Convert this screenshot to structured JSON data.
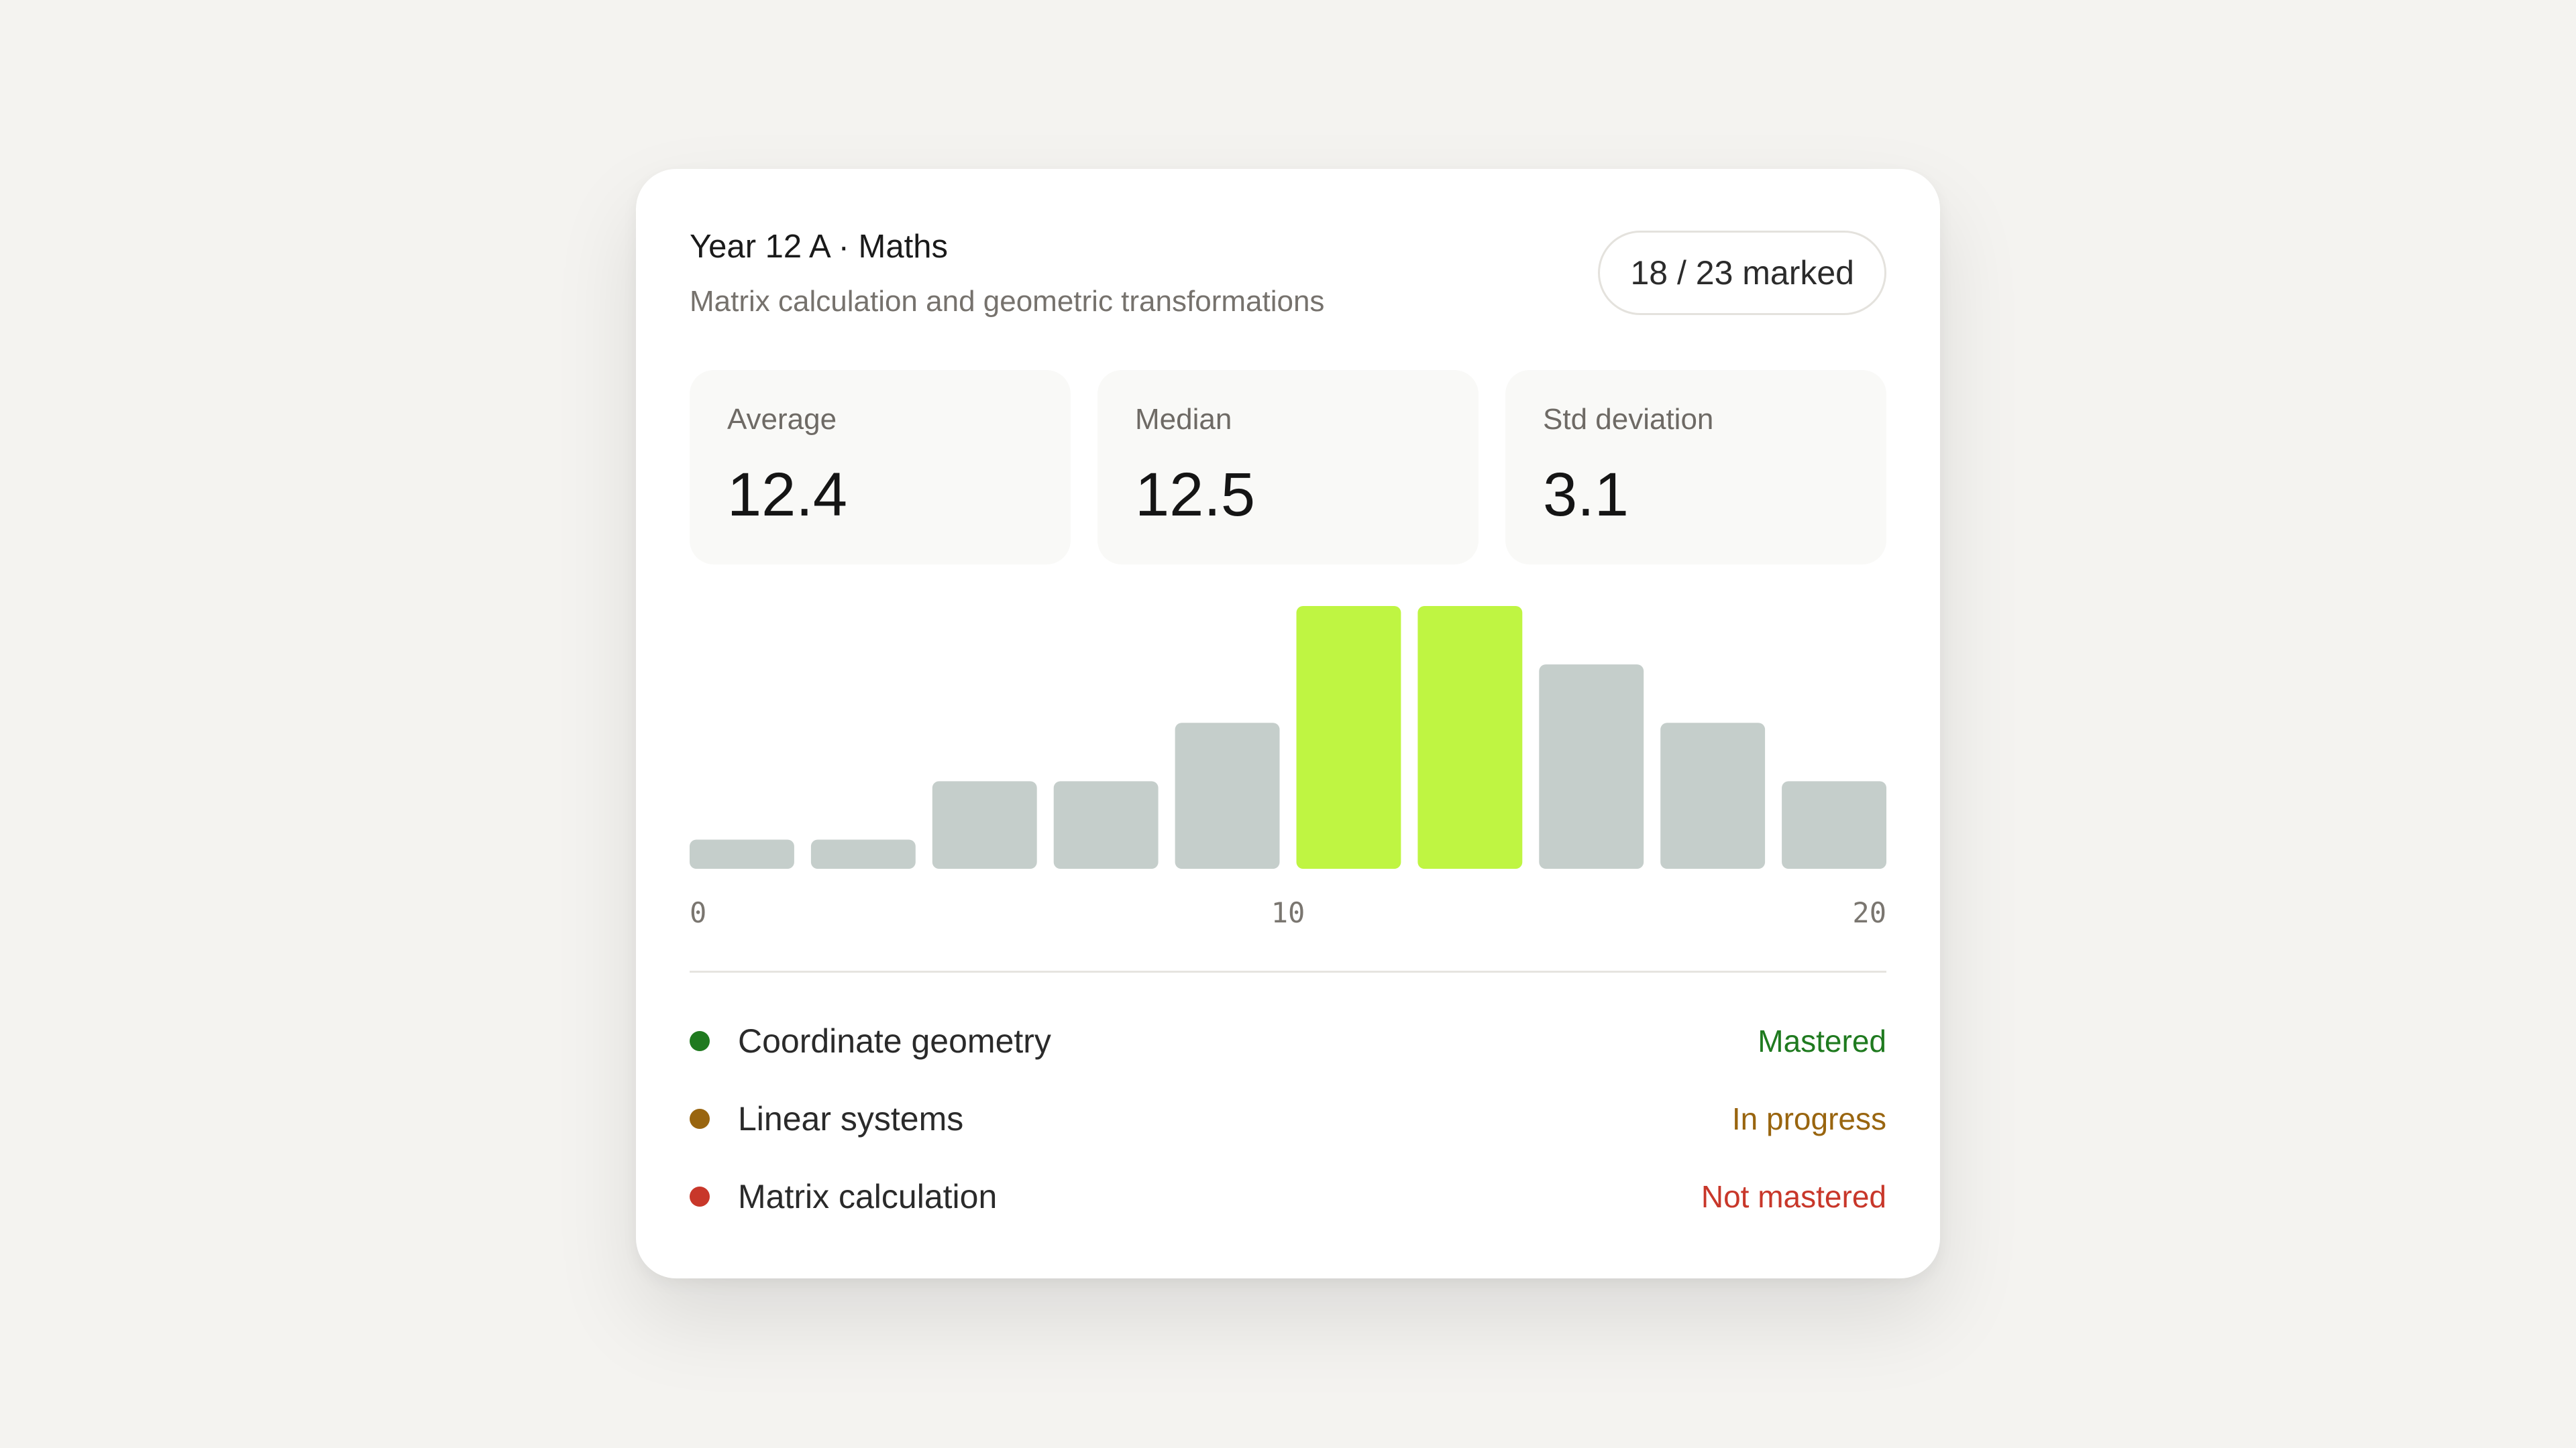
{
  "header": {
    "title": "Year 12 A · Maths",
    "subtitle": "Matrix calculation and geometric transformations",
    "badge": "18 / 23 marked"
  },
  "stats": [
    {
      "label": "Average",
      "value": "12.4"
    },
    {
      "label": "Median",
      "value": "12.5"
    },
    {
      "label": "Std deviation",
      "value": "3.1"
    }
  ],
  "chart_data": {
    "type": "bar",
    "x_range": [
      0,
      20
    ],
    "bins": [
      [
        0,
        2
      ],
      [
        2,
        4
      ],
      [
        4,
        6
      ],
      [
        6,
        8
      ],
      [
        8,
        10
      ],
      [
        10,
        12
      ],
      [
        12,
        14
      ],
      [
        14,
        16
      ],
      [
        16,
        18
      ],
      [
        18,
        20
      ]
    ],
    "values": [
      0.5,
      0.5,
      1.5,
      1.5,
      2.5,
      4.5,
      4.5,
      3.5,
      2.5,
      1.5
    ],
    "highlighted": [
      false,
      false,
      false,
      false,
      false,
      true,
      true,
      false,
      false,
      false
    ],
    "tick_labels": [
      "0",
      "10",
      "20"
    ],
    "bar_color": "#c5cecb",
    "highlight_color": "#bff542"
  },
  "topics": [
    {
      "name": "Coordinate geometry",
      "status": "Mastered",
      "color": "#1f7a1f"
    },
    {
      "name": "Linear systems",
      "status": "In progress",
      "color": "#99650f"
    },
    {
      "name": "Matrix calculation",
      "status": "Not mastered",
      "color": "#c8372a"
    }
  ]
}
